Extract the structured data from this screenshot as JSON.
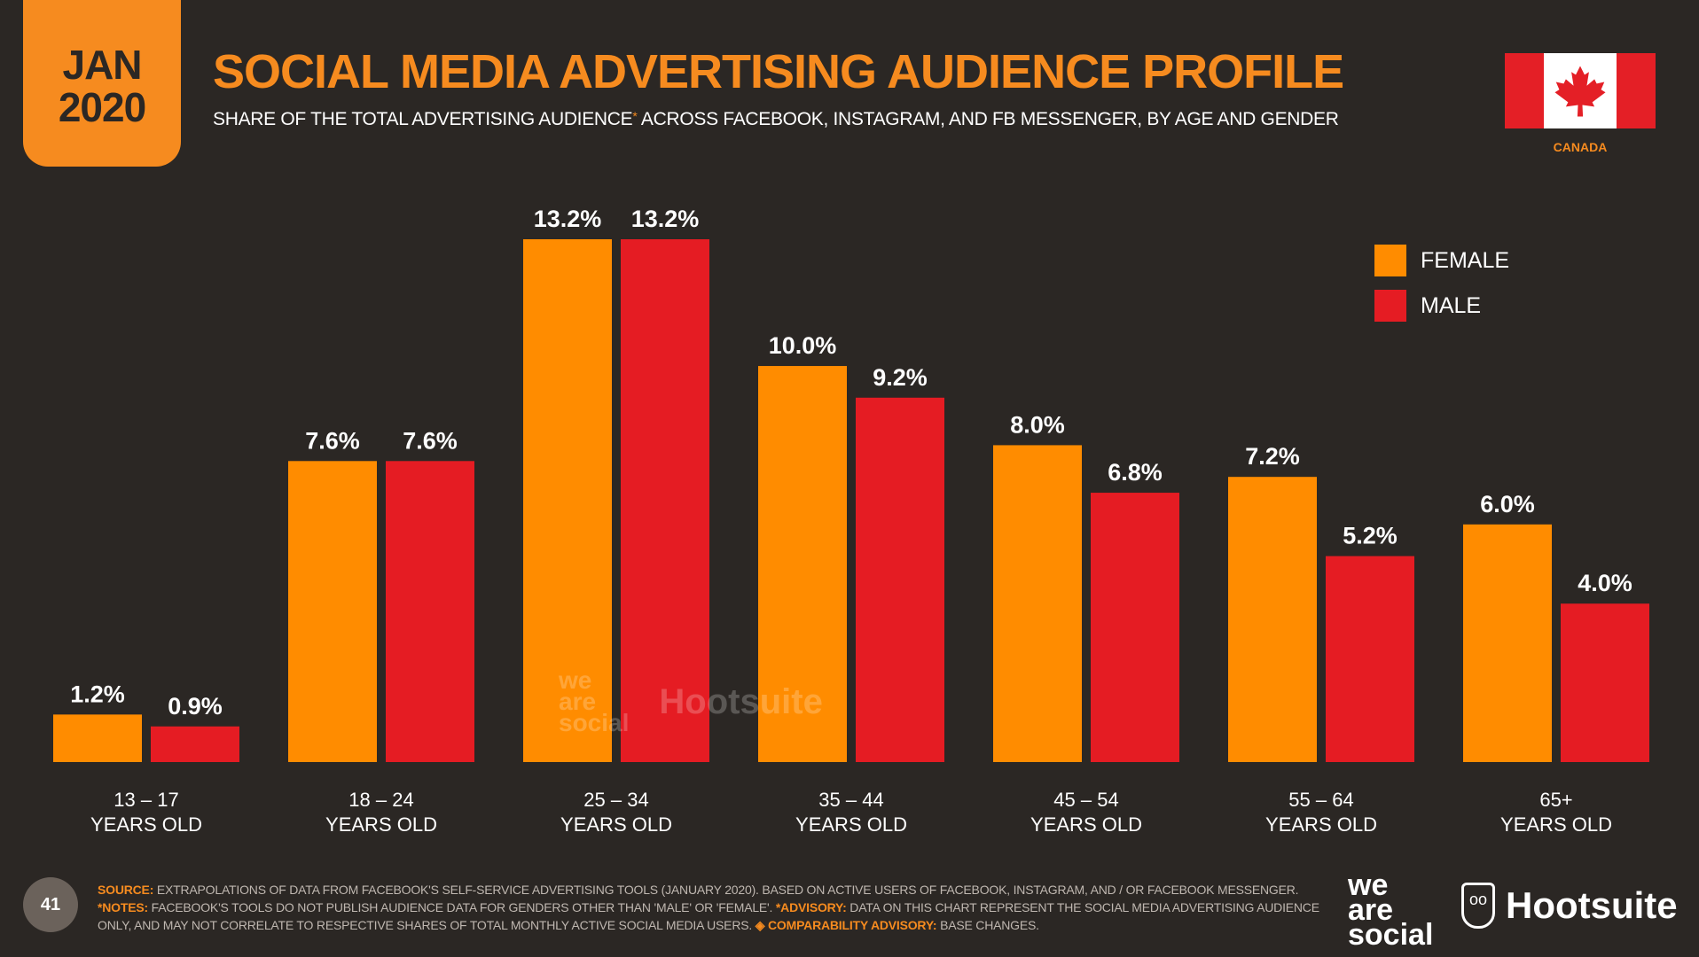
{
  "badge": {
    "month": "JAN",
    "year": "2020"
  },
  "title": "SOCIAL MEDIA ADVERTISING AUDIENCE PROFILE",
  "subtitle": {
    "before": "SHARE OF THE TOTAL ADVERTISING AUDIENCE",
    "star": "*",
    "after": " ACROSS FACEBOOK, INSTAGRAM, AND FB MESSENGER, BY AGE AND GENDER"
  },
  "country": {
    "name": "CANADA",
    "flag_icon": "maple-leaf-icon"
  },
  "colors": {
    "accent": "#f68b1f",
    "female": "#ff8c00",
    "male": "#e51c23",
    "background": "#2b2724"
  },
  "chart_data": {
    "type": "bar",
    "categories": [
      [
        "13 – 17",
        "YEARS OLD"
      ],
      [
        "18 – 24",
        "YEARS OLD"
      ],
      [
        "25 – 34",
        "YEARS OLD"
      ],
      [
        "35 – 44",
        "YEARS OLD"
      ],
      [
        "45 – 54",
        "YEARS OLD"
      ],
      [
        "55 – 64",
        "YEARS OLD"
      ],
      [
        "65+",
        "YEARS OLD"
      ]
    ],
    "series": [
      {
        "name": "FEMALE",
        "color": "#ff8c00",
        "values": [
          1.2,
          7.6,
          13.2,
          10.0,
          8.0,
          7.2,
          6.0
        ],
        "labels": [
          "1.2%",
          "7.6%",
          "13.2%",
          "10.0%",
          "8.0%",
          "7.2%",
          "6.0%"
        ]
      },
      {
        "name": "MALE",
        "color": "#e51c23",
        "values": [
          0.9,
          7.6,
          13.2,
          9.2,
          6.8,
          5.2,
          4.0
        ],
        "labels": [
          "0.9%",
          "7.6%",
          "13.2%",
          "9.2%",
          "6.8%",
          "5.2%",
          "4.0%"
        ]
      }
    ],
    "ylim": [
      0,
      13.2
    ],
    "legend_position": "top-right",
    "grid": false
  },
  "watermark": {
    "we": "we",
    "are": "are",
    "social": "social",
    "hootsuite": "Hootsuite"
  },
  "footer": {
    "page_number": "41",
    "source_label": "SOURCE:",
    "source_text": " EXTRAPOLATIONS OF DATA FROM FACEBOOK'S SELF-SERVICE ADVERTISING TOOLS (JANUARY 2020). BASED ON ACTIVE USERS OF FACEBOOK, INSTAGRAM, AND / OR FACEBOOK MESSENGER. ",
    "notes_label": "*NOTES:",
    "notes_text": " FACEBOOK'S TOOLS DO NOT PUBLISH AUDIENCE DATA FOR GENDERS OTHER THAN 'MALE' OR 'FEMALE'. ",
    "advisory_label": "*ADVISORY:",
    "advisory_text": " DATA ON THIS CHART REPRESENT THE SOCIAL MEDIA ADVERTISING AUDIENCE ONLY, AND MAY NOT CORRELATE TO RESPECTIVE SHARES OF TOTAL MONTHLY ACTIVE SOCIAL MEDIA USERS. ",
    "comparability_label": "◈ COMPARABILITY ADVISORY:",
    "comparability_text": " BASE CHANGES."
  },
  "brand": {
    "we": "we",
    "are": "are",
    "social": "social",
    "hootsuite": "Hootsuite"
  }
}
